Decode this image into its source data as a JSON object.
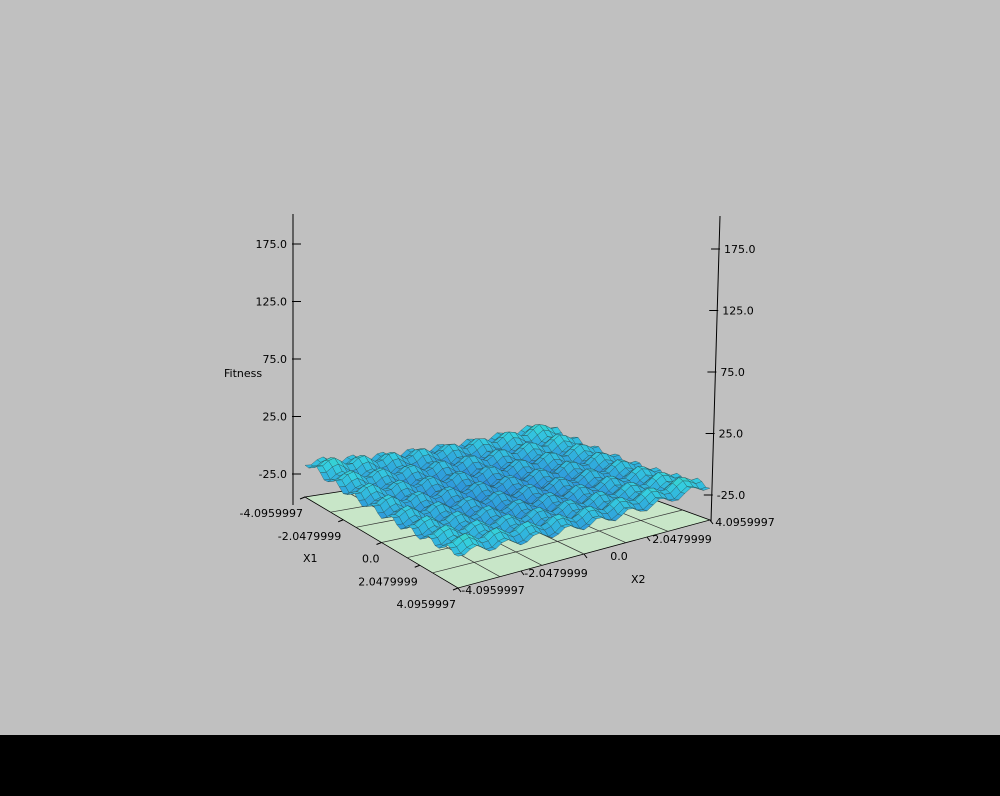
{
  "colors": {
    "background": "#c0c0c0",
    "floor": "#c8e6c8",
    "surface_low": "#2a6fd8",
    "surface_mid": "#34cfe0",
    "surface_high": "#3ee07a",
    "axis": "#000000",
    "status_bar": "#000000"
  },
  "chart_data": {
    "type": "surface",
    "title": "",
    "zlabel": "Fitness",
    "xlabel": "X1",
    "ylabel": "X2",
    "x_ticks": [
      "-4.0959997",
      "-2.0479999",
      "0.0",
      "2.0479999",
      "4.0959997"
    ],
    "y_ticks": [
      "-4.0959997",
      "-2.0479999",
      "0.0",
      "2.0479999",
      "4.0959997"
    ],
    "z_ticks": [
      "-25.0",
      "25.0",
      "75.0",
      "125.0",
      "175.0"
    ],
    "xlim": [
      -4.0959997,
      4.0959997
    ],
    "ylim": [
      -4.0959997,
      4.0959997
    ],
    "zlim": [
      -25.0,
      175.0
    ],
    "function": "rastrigin",
    "surface_z_range": [
      0,
      86
    ],
    "grid": true
  }
}
